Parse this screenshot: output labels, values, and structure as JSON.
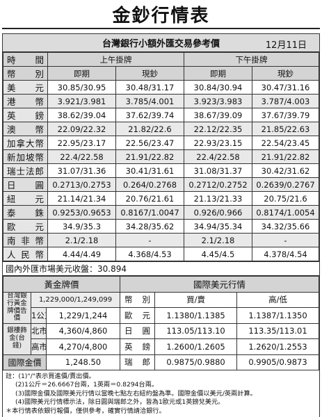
{
  "title": "金鈔行情表",
  "subtitle": "台灣銀行小額外匯交易參考價",
  "date": "12月11日",
  "rates_header": {
    "period_label": "時間",
    "currency_label": "幣別",
    "am_label": "上午掛牌",
    "pm_label": "下午掛牌",
    "spot_label": "即期",
    "cash_label": "現鈔"
  },
  "rates": [
    {
      "currency": "美元",
      "am_spot": "30.85/30.95",
      "am_cash": "30.48/31.17",
      "pm_spot": "30.84/30.94",
      "pm_cash": "30.47/31.16"
    },
    {
      "currency": "港幣",
      "am_spot": "3.921/3.981",
      "am_cash": "3.785/4.001",
      "pm_spot": "3.923/3.983",
      "pm_cash": "3.787/4.003"
    },
    {
      "currency": "英鎊",
      "am_spot": "38.62/39.04",
      "am_cash": "37.62/39.74",
      "pm_spot": "38.67/39.09",
      "pm_cash": "37.67/39.79"
    },
    {
      "currency": "澳幣",
      "am_spot": "22.09/22.32",
      "am_cash": "21.82/22.6",
      "pm_spot": "22.12/22.35",
      "pm_cash": "21.85/22.63"
    },
    {
      "currency": "加拿大幣",
      "am_spot": "22.95/23.17",
      "am_cash": "22.56/23.47",
      "pm_spot": "22.93/23.15",
      "pm_cash": "22.54/23.45"
    },
    {
      "currency": "新加坡幣",
      "am_spot": "22.4/22.58",
      "am_cash": "21.91/22.82",
      "pm_spot": "22.4/22.58",
      "pm_cash": "21.91/22.82"
    },
    {
      "currency": "瑞士法郎",
      "am_spot": "31.07/31.36",
      "am_cash": "30.41/31.61",
      "pm_spot": "31.08/31.37",
      "pm_cash": "30.42/31.62"
    },
    {
      "currency": "日圓",
      "am_spot": "0.2713/0.2753",
      "am_cash": "0.264/0.2768",
      "pm_spot": "0.2712/0.2752",
      "pm_cash": "0.2639/0.2767"
    },
    {
      "currency": "紐元",
      "am_spot": "21.14/21.34",
      "am_cash": "20.76/21.61",
      "pm_spot": "21.13/21.33",
      "pm_cash": "20.75/21.6"
    },
    {
      "currency": "泰銖",
      "am_spot": "0.9253/0.9653",
      "am_cash": "0.8167/1.0047",
      "pm_spot": "0.926/0.966",
      "pm_cash": "0.8174/1.0054"
    },
    {
      "currency": "歐元",
      "am_spot": "34.9/35.3",
      "am_cash": "34.28/35.62",
      "pm_spot": "34.94/35.34",
      "pm_cash": "34.32/35.66"
    },
    {
      "currency": "南非幣",
      "am_spot": "2.1/2.18",
      "am_cash": "-",
      "pm_spot": "2.1/2.18",
      "pm_cash": "-"
    },
    {
      "currency": "人民幣",
      "am_spot": "4.44/4.49",
      "am_cash": "4.368/4.53",
      "pm_spot": "4.45/4.5",
      "pm_cash": "4.378/4.54"
    }
  ],
  "usd_close": "國內外匯市場美元收盤：30.894",
  "gold": {
    "header": "黃金牌價",
    "bank_label": "台灣銀行黃金牌價告價",
    "price_1kg": "1,229,000/1,249,099",
    "unit_1g": "1公克",
    "price_1g": "1,229/1,244",
    "ingot_label": "銀樓飾金(台錢)",
    "north_label": "北市",
    "north_price": "4,360/4,860",
    "kaohsiung_label": "高市",
    "kaohsiung_price": "4,270/4,800",
    "intl_label": "國際金價",
    "intl_price": "1,248.50"
  },
  "usd_intl": {
    "header": "國際美元行情",
    "col_currency": "幣別",
    "col_buysell": "買/賣",
    "col_highlow": "高/低",
    "rows": [
      {
        "currency": "歐元",
        "buysell": "1.1380/1.1385",
        "highlow": "1.1387/1.1350"
      },
      {
        "currency": "日圓",
        "buysell": "113.05/113.10",
        "highlow": "113.35/113.01"
      },
      {
        "currency": "英鎊",
        "buysell": "1.2600/1.2605",
        "highlow": "1.2620/1.2553"
      },
      {
        "currency": "瑞郎",
        "buysell": "0.9875/0.9880",
        "highlow": "0.9905/0.9873"
      }
    ]
  },
  "notes": [
    "註：(1)\"/\"表示買進價/賣出價。",
    "(2)1公斤＝26.6667台兩，1英兩＝0.8294台兩。",
    "(3)國際金價及國際美元行情以當晚七點左右紐約盤為準。國際金價以美元/英兩計算。",
    "(4)國際美元行情標示法，除日圓與瑞郎之外，皆為1歐元或1英鎊兌美元。",
    "＊本行情表依銀行報價，僅供參考，確實行情請洽銀行。"
  ]
}
